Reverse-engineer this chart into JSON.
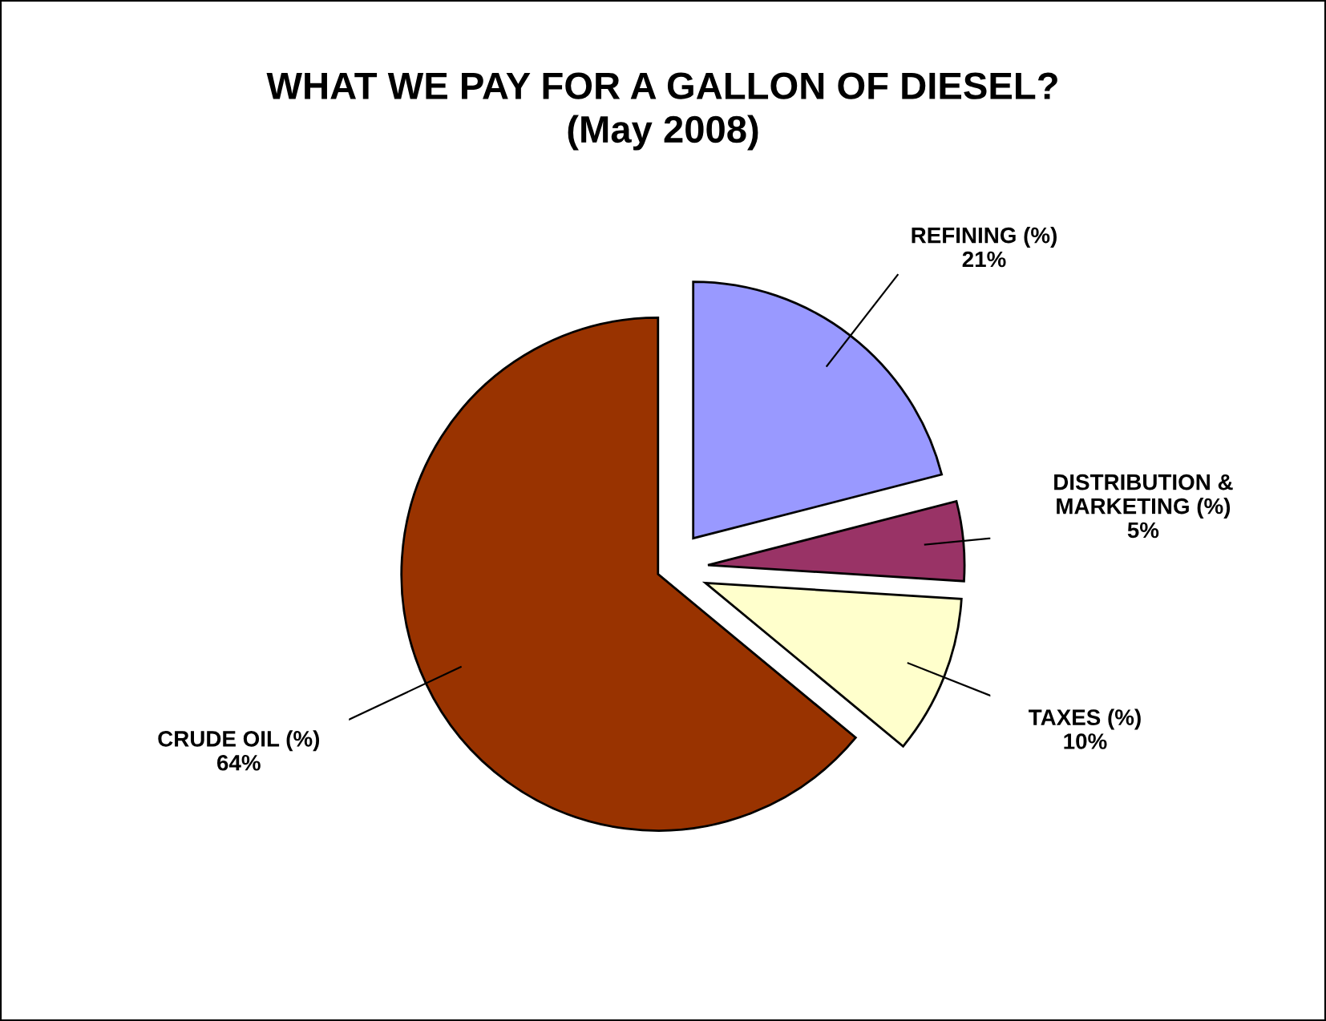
{
  "chart_data": {
    "type": "pie",
    "title": "WHAT WE PAY FOR A GALLON OF DIESEL?\n(May 2008)",
    "categories": [
      "REFINING (%)",
      "DISTRIBUTION &\nMARKETING (%)",
      "TAXES (%)",
      "CRUDE OIL (%)"
    ],
    "values": [
      21,
      5,
      10,
      64
    ],
    "value_labels": [
      "21%",
      "5%",
      "10%",
      "64%"
    ],
    "colors": [
      "#9999ff",
      "#993366",
      "#ffffcc",
      "#993300"
    ],
    "legend": false
  }
}
